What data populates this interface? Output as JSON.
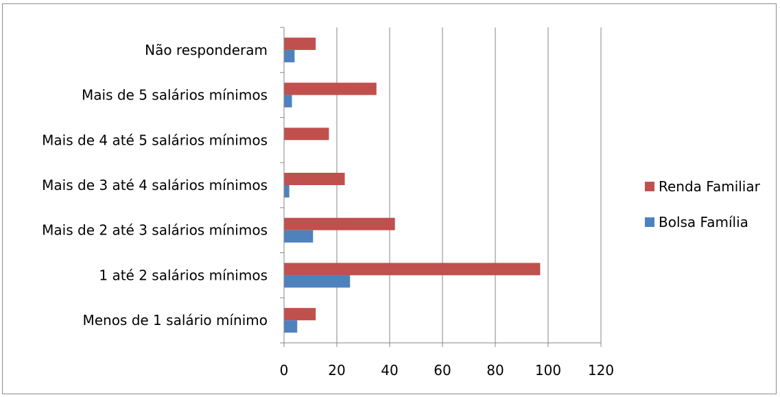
{
  "chart_data": {
    "type": "bar",
    "orientation": "horizontal",
    "categories": [
      "Menos de 1 salário mínimo",
      "1 até 2 salários mínimos",
      "Mais de 2 até 3 salários mínimos",
      "Mais de 3 até 4 salários mínimos",
      "Mais de 4 até 5 salários mínimos",
      "Mais de 5 salários mínimos",
      "Não responderam"
    ],
    "series": [
      {
        "name": "Bolsa Família",
        "color": "#4f81bd",
        "values": [
          5,
          25,
          11,
          2,
          0,
          3,
          4
        ]
      },
      {
        "name": "Renda Familiar",
        "color": "#c0504d",
        "values": [
          12,
          97,
          42,
          23,
          17,
          35,
          12
        ]
      }
    ],
    "xlim": [
      0,
      120
    ],
    "xticks": [
      "0",
      "20",
      "40",
      "60",
      "80",
      "100",
      "120"
    ],
    "grid": "vertical",
    "legend": {
      "position": "right",
      "order": [
        "Renda Familiar",
        "Bolsa Família"
      ]
    }
  }
}
